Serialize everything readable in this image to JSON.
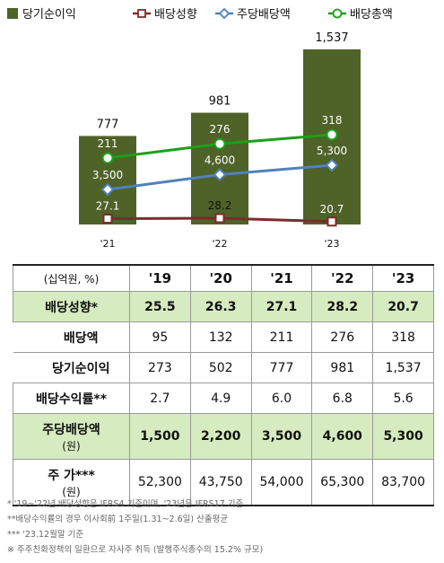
{
  "chart_data": {
    "type": "bar",
    "categories": [
      "'21",
      "'22",
      "'23"
    ],
    "legend": [
      "당기순이익",
      "배당성향",
      "주당배당액",
      "배당총액"
    ],
    "bars": {
      "name": "당기순이익",
      "values": [
        777,
        981,
        1537
      ],
      "labels": [
        "777",
        "981",
        "1,537"
      ]
    },
    "lines": [
      {
        "name": "배당성향",
        "values": [
          27.1,
          28.2,
          20.7
        ],
        "labels": [
          "27.1",
          "28.2",
          "20.7"
        ]
      },
      {
        "name": "주당배당액",
        "values": [
          3500,
          4600,
          5300
        ],
        "labels": [
          "3,500",
          "4,600",
          "5,300"
        ]
      },
      {
        "name": "배당총액",
        "values": [
          211,
          276,
          318
        ],
        "labels": [
          "211",
          "276",
          "318"
        ]
      }
    ],
    "colors": {
      "bar": "#4f6228",
      "payout": "#7b2c2c",
      "dps": "#4f81bd",
      "total": "#1aa01a"
    }
  },
  "table": {
    "unit": "(십억원, %)",
    "years": [
      "'19",
      "'20",
      "'21",
      "'22",
      "'23"
    ],
    "rows": [
      {
        "label": "배당성향*",
        "values": [
          "25.5",
          "26.3",
          "27.1",
          "28.2",
          "20.7"
        ]
      },
      {
        "label": "배당액",
        "values": [
          "95",
          "132",
          "211",
          "276",
          "318"
        ]
      },
      {
        "label": "당기순이익",
        "values": [
          "273",
          "502",
          "777",
          "981",
          "1,537"
        ]
      },
      {
        "label": "배당수익률**",
        "values": [
          "2.7",
          "4.9",
          "6.0",
          "6.8",
          "5.6"
        ]
      },
      {
        "label": "주당배당액",
        "sublabel": "(원)",
        "values": [
          "1,500",
          "2,200",
          "3,500",
          "4,600",
          "5,300"
        ]
      },
      {
        "label": "주 가***",
        "sublabel": "(원)",
        "values": [
          "52,300",
          "43,750",
          "54,000",
          "65,300",
          "83,700"
        ]
      }
    ]
  },
  "notes": [
    "* '19~'22년 배당성향은 IFRS4 기준이며, '23년은 IFRS17 기준",
    "**배당수익률의 경우 이사회前 1주일(1.31~2.6일) 산출평균",
    "*** '23.12월말 기준",
    "※ 주주친화정책의 일환으로 자사주 취득 (발행주식총수의 15.2% 규모)"
  ]
}
